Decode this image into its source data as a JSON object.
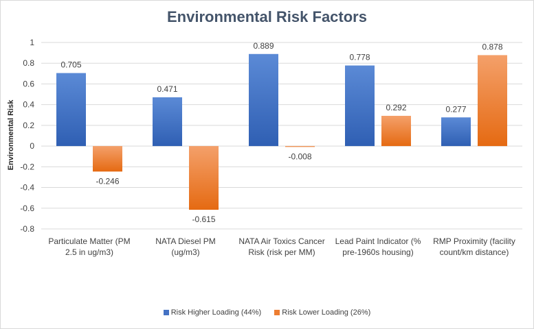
{
  "chart_data": {
    "type": "bar",
    "title": "Environmental Risk Factors",
    "ylabel": "Environmental Risk",
    "xlabel": "",
    "ylim": [
      -0.8,
      1
    ],
    "yticks": [
      "1",
      "0.8",
      "0.6",
      "0.4",
      "0.2",
      "0",
      "-0.2",
      "-0.4",
      "-0.6",
      "-0.8"
    ],
    "ytick_values": [
      1,
      0.8,
      0.6,
      0.4,
      0.2,
      0,
      -0.2,
      -0.4,
      -0.6,
      -0.8
    ],
    "grid": true,
    "legend_position": "bottom",
    "categories": [
      [
        "Particulate Matter (PM",
        "2.5 in ug/m3)"
      ],
      [
        "NATA Diesel PM",
        "(ug/m3)"
      ],
      [
        "NATA Air Toxics Cancer",
        "Risk (risk per MM)"
      ],
      [
        "Lead Paint Indicator (%",
        "pre-1960s housing)"
      ],
      [
        "RMP Proximity (facility",
        "count/km distance)"
      ]
    ],
    "series": [
      {
        "name": "Risk Higher Loading (44%)",
        "values": [
          0.705,
          0.471,
          0.889,
          0.778,
          0.277
        ],
        "labels": [
          "0.705",
          "0.471",
          "0.889",
          "0.778",
          "0.277"
        ],
        "color": "#4472c4"
      },
      {
        "name": "Risk Lower Loading (26%)",
        "values": [
          -0.246,
          -0.615,
          -0.008,
          0.292,
          0.878
        ],
        "labels": [
          "-0.246",
          "-0.615",
          "-0.008",
          "0.292",
          "0.878"
        ],
        "color": "#ed7d31"
      }
    ]
  }
}
